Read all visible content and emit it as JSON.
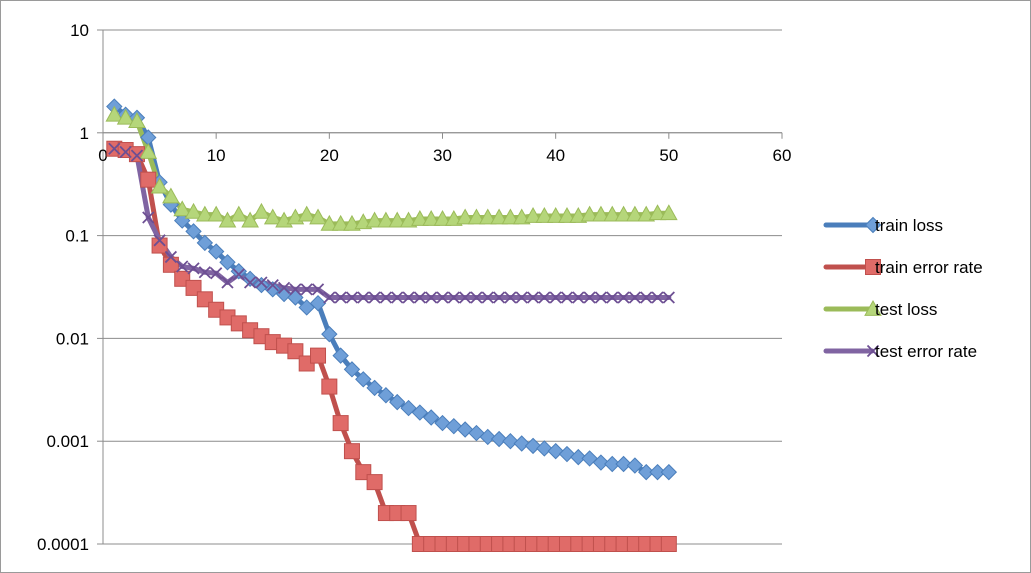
{
  "chart_data": {
    "type": "line",
    "title": "",
    "xlabel": "",
    "ylabel": "",
    "xlim": [
      0,
      60
    ],
    "x_ticks": [
      "0",
      "10",
      "20",
      "30",
      "40",
      "50",
      "60"
    ],
    "x_tick_values": [
      0,
      10,
      20,
      30,
      40,
      50,
      60
    ],
    "y_scale": "log",
    "ylim": [
      0.0001,
      10
    ],
    "y_ticks": [
      "10",
      "1",
      "0.1",
      "0.01",
      "0.001",
      "0.0001"
    ],
    "y_tick_values": [
      10,
      1,
      0.1,
      0.01,
      0.001,
      0.0001
    ],
    "x_axis_crosses_at": 1,
    "grid": true,
    "legend_position": "right",
    "x": [
      1,
      2,
      3,
      4,
      5,
      6,
      7,
      8,
      9,
      10,
      11,
      12,
      13,
      14,
      15,
      16,
      17,
      18,
      19,
      20,
      21,
      22,
      23,
      24,
      25,
      26,
      27,
      28,
      29,
      30,
      31,
      32,
      33,
      34,
      35,
      36,
      37,
      38,
      39,
      40,
      41,
      42,
      43,
      44,
      45,
      46,
      47,
      48,
      49,
      50
    ],
    "series": [
      {
        "name": "train loss",
        "color": "#4a7ebb",
        "marker_color": "#6f9fd8",
        "marker": "diamond",
        "values": [
          1.8,
          1.5,
          1.4,
          0.9,
          0.33,
          0.2,
          0.14,
          0.11,
          0.085,
          0.07,
          0.055,
          0.045,
          0.038,
          0.033,
          0.03,
          0.027,
          0.025,
          0.02,
          0.022,
          0.011,
          0.0068,
          0.005,
          0.004,
          0.0033,
          0.0028,
          0.0024,
          0.0021,
          0.0019,
          0.0017,
          0.0015,
          0.0014,
          0.0013,
          0.0012,
          0.0011,
          0.00105,
          0.001,
          0.00095,
          0.0009,
          0.00085,
          0.0008,
          0.00075,
          0.0007,
          0.00068,
          0.00062,
          0.0006,
          0.0006,
          0.00058,
          0.0005,
          0.0005,
          0.0005
        ]
      },
      {
        "name": "train error rate",
        "color": "#c0504d",
        "marker_color": "#e06b68",
        "marker": "square",
        "values": [
          0.7,
          0.68,
          0.62,
          0.35,
          0.08,
          0.052,
          0.038,
          0.031,
          0.024,
          0.019,
          0.016,
          0.014,
          0.012,
          0.0105,
          0.0092,
          0.0085,
          0.0075,
          0.0057,
          0.0068,
          0.0034,
          0.0015,
          0.0008,
          0.0005,
          0.0004,
          0.0002,
          0.0002,
          0.0002,
          0.0001,
          0.0001,
          0.0001,
          0.0001,
          0.0001,
          0.0001,
          0.0001,
          0.0001,
          0.0001,
          0.0001,
          0.0001,
          0.0001,
          0.0001,
          0.0001,
          0.0001,
          0.0001,
          0.0001,
          0.0001,
          0.0001,
          0.0001,
          0.0001,
          0.0001,
          0.0001
        ]
      },
      {
        "name": "test loss",
        "color": "#9bbb59",
        "marker_color": "#b5d67a",
        "marker": "triangle",
        "values": [
          1.5,
          1.4,
          1.3,
          0.65,
          0.3,
          0.24,
          0.18,
          0.17,
          0.16,
          0.16,
          0.14,
          0.16,
          0.14,
          0.17,
          0.15,
          0.14,
          0.15,
          0.16,
          0.15,
          0.13,
          0.13,
          0.13,
          0.135,
          0.14,
          0.14,
          0.14,
          0.14,
          0.145,
          0.145,
          0.145,
          0.145,
          0.15,
          0.15,
          0.15,
          0.15,
          0.15,
          0.15,
          0.155,
          0.155,
          0.155,
          0.155,
          0.155,
          0.16,
          0.16,
          0.16,
          0.16,
          0.16,
          0.16,
          0.165,
          0.165
        ]
      },
      {
        "name": "test error rate",
        "color": "#8064a2",
        "marker_color": "#6d4f93",
        "marker": "x",
        "values": [
          0.7,
          0.65,
          0.6,
          0.15,
          0.09,
          0.062,
          0.05,
          0.048,
          0.044,
          0.043,
          0.035,
          0.042,
          0.035,
          0.035,
          0.033,
          0.031,
          0.03,
          0.03,
          0.03,
          0.025,
          0.025,
          0.025,
          0.025,
          0.025,
          0.025,
          0.025,
          0.025,
          0.025,
          0.025,
          0.025,
          0.025,
          0.025,
          0.025,
          0.025,
          0.025,
          0.025,
          0.025,
          0.025,
          0.025,
          0.025,
          0.025,
          0.025,
          0.025,
          0.025,
          0.025,
          0.025,
          0.025,
          0.025,
          0.025,
          0.025
        ]
      }
    ]
  }
}
